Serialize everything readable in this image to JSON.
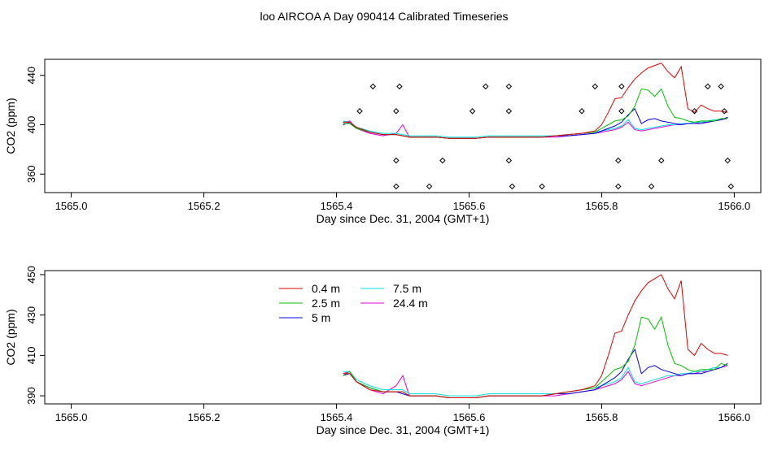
{
  "title": "loo AIRCOA A  Day 090414  Calibrated Timeseries",
  "colors": {
    "0.4 m": "#e00000",
    "2.5 m": "#00c000",
    "5 m": "#0000dd",
    "7.5 m": "#00e0e0",
    "24.4 m": "#e000e0",
    "points": "#000000"
  },
  "chart_data": [
    {
      "type": "line",
      "xlabel": "Day since Dec. 31, 2004 (GMT+1)",
      "ylabel": "CO2 (ppm)",
      "xlim": [
        1564.96,
        1566.04
      ],
      "ylim": [
        345,
        453
      ],
      "xticks": [
        1565.0,
        1565.2,
        1565.4,
        1565.6,
        1565.8,
        1566.0
      ],
      "xtick_labels": [
        "1565.0",
        "1565.2",
        "1565.4",
        "1565.6",
        "1565.8",
        "1566.0"
      ],
      "yticks": [
        360,
        400,
        440
      ],
      "ytick_labels": [
        "360",
        "400",
        "440"
      ],
      "legend": null,
      "x": [
        1565.41,
        1565.42,
        1565.43,
        1565.45,
        1565.47,
        1565.49,
        1565.5,
        1565.51,
        1565.53,
        1565.55,
        1565.57,
        1565.59,
        1565.61,
        1565.63,
        1565.65,
        1565.67,
        1565.69,
        1565.71,
        1565.73,
        1565.75,
        1565.77,
        1565.79,
        1565.8,
        1565.81,
        1565.82,
        1565.83,
        1565.84,
        1565.85,
        1565.86,
        1565.87,
        1565.88,
        1565.89,
        1565.9,
        1565.91,
        1565.92,
        1565.93,
        1565.94,
        1565.95,
        1565.96,
        1565.97,
        1565.98,
        1565.99
      ],
      "series": [
        {
          "name": "0.4 m",
          "values": [
            402,
            402,
            398,
            394,
            392,
            392,
            391,
            390,
            390,
            390,
            389,
            389,
            389,
            390,
            390,
            390,
            390,
            390,
            391,
            392,
            393,
            395,
            400,
            410,
            421,
            422,
            430,
            437,
            442,
            446,
            448,
            450,
            443,
            438,
            447,
            413,
            410,
            416,
            413,
            411,
            411,
            410
          ]
        },
        {
          "name": "2.5 m",
          "values": [
            401,
            401,
            397,
            394,
            392,
            392,
            391,
            390,
            390,
            390,
            389,
            389,
            389,
            390,
            390,
            390,
            390,
            390,
            391,
            392,
            393,
            394,
            397,
            400,
            403,
            404,
            407,
            415,
            429,
            428,
            423,
            429,
            415,
            406,
            405,
            403,
            402,
            403,
            403,
            403,
            405,
            405
          ]
        },
        {
          "name": "5 m",
          "values": [
            400,
            402,
            397,
            394,
            392,
            392,
            391,
            390,
            390,
            390,
            389,
            389,
            389,
            390,
            390,
            390,
            390,
            390,
            391,
            391,
            392,
            393,
            395,
            397,
            399,
            402,
            408,
            413,
            401,
            404,
            405,
            403,
            402,
            401,
            400,
            401,
            401,
            401,
            402,
            403,
            404,
            406
          ]
        },
        {
          "name": "7.5 m",
          "values": [
            403,
            402,
            398,
            395,
            393,
            393,
            392,
            391,
            391,
            391,
            390,
            390,
            390,
            391,
            391,
            391,
            391,
            391,
            391,
            392,
            393,
            394,
            395,
            396,
            397,
            399,
            404,
            397,
            396,
            397,
            398,
            399,
            400,
            400,
            401,
            401,
            402,
            402,
            403,
            404,
            404,
            406
          ]
        },
        {
          "name": "24.4 m",
          "values": [
            402,
            403,
            397,
            393,
            391,
            393,
            400,
            390,
            390,
            390,
            389,
            389,
            389,
            390,
            390,
            390,
            390,
            390,
            390,
            391,
            392,
            393,
            394,
            395,
            396,
            398,
            402,
            396,
            395,
            396,
            397,
            398,
            399,
            400,
            400,
            401,
            401,
            402,
            402,
            403,
            404,
            405
          ]
        }
      ],
      "points": [
        {
          "x": 1565.455,
          "y": 431
        },
        {
          "x": 1565.495,
          "y": 431
        },
        {
          "x": 1565.625,
          "y": 431
        },
        {
          "x": 1565.66,
          "y": 431
        },
        {
          "x": 1565.79,
          "y": 431
        },
        {
          "x": 1565.83,
          "y": 431
        },
        {
          "x": 1565.96,
          "y": 431
        },
        {
          "x": 1565.98,
          "y": 431
        },
        {
          "x": 1565.435,
          "y": 411
        },
        {
          "x": 1565.49,
          "y": 411
        },
        {
          "x": 1565.605,
          "y": 411
        },
        {
          "x": 1565.66,
          "y": 411
        },
        {
          "x": 1565.77,
          "y": 411
        },
        {
          "x": 1565.83,
          "y": 411
        },
        {
          "x": 1565.94,
          "y": 411
        },
        {
          "x": 1565.985,
          "y": 411
        },
        {
          "x": 1565.49,
          "y": 371
        },
        {
          "x": 1565.56,
          "y": 371
        },
        {
          "x": 1565.66,
          "y": 371
        },
        {
          "x": 1565.825,
          "y": 371
        },
        {
          "x": 1565.89,
          "y": 371
        },
        {
          "x": 1565.99,
          "y": 371
        },
        {
          "x": 1565.49,
          "y": 350
        },
        {
          "x": 1565.54,
          "y": 350
        },
        {
          "x": 1565.665,
          "y": 350
        },
        {
          "x": 1565.71,
          "y": 350
        },
        {
          "x": 1565.825,
          "y": 350
        },
        {
          "x": 1565.875,
          "y": 350
        },
        {
          "x": 1565.995,
          "y": 350
        }
      ]
    },
    {
      "type": "line",
      "xlabel": "Day since Dec. 31, 2004 (GMT+1)",
      "ylabel": "CO2 (ppm)",
      "xlim": [
        1564.96,
        1566.04
      ],
      "ylim": [
        386,
        452
      ],
      "xticks": [
        1565.0,
        1565.2,
        1565.4,
        1565.6,
        1565.8,
        1566.0
      ],
      "xtick_labels": [
        "1565.0",
        "1565.2",
        "1565.4",
        "1565.6",
        "1565.8",
        "1566.0"
      ],
      "yticks": [
        390,
        410,
        430,
        450
      ],
      "ytick_labels": [
        "390",
        "410",
        "430",
        "450"
      ],
      "legend": {
        "placement": "top-left",
        "entries": [
          "0.4 m",
          "2.5 m",
          "5 m",
          "7.5 m",
          "24.4 m"
        ]
      },
      "x": [
        1565.41,
        1565.42,
        1565.43,
        1565.45,
        1565.47,
        1565.49,
        1565.5,
        1565.51,
        1565.53,
        1565.55,
        1565.57,
        1565.59,
        1565.61,
        1565.63,
        1565.65,
        1565.67,
        1565.69,
        1565.71,
        1565.73,
        1565.75,
        1565.77,
        1565.79,
        1565.8,
        1565.81,
        1565.82,
        1565.83,
        1565.84,
        1565.85,
        1565.86,
        1565.87,
        1565.88,
        1565.89,
        1565.9,
        1565.91,
        1565.92,
        1565.93,
        1565.94,
        1565.95,
        1565.96,
        1565.97,
        1565.98,
        1565.99
      ],
      "series": [
        {
          "name": "0.4 m",
          "values": [
            401,
            401,
            397,
            393,
            392,
            392,
            392,
            390,
            390,
            390,
            389,
            389,
            389,
            390,
            390,
            390,
            390,
            390,
            391,
            392,
            393,
            395,
            400,
            410,
            421,
            422,
            430,
            437,
            442,
            446,
            448,
            450,
            443,
            438,
            447,
            413,
            410,
            416,
            413,
            411,
            411,
            410
          ]
        },
        {
          "name": "2.5 m",
          "values": [
            400,
            402,
            397,
            394,
            392,
            392,
            392,
            390,
            390,
            390,
            389,
            389,
            389,
            390,
            390,
            390,
            390,
            390,
            391,
            392,
            393,
            394,
            397,
            400,
            403,
            404,
            407,
            415,
            429,
            428,
            423,
            429,
            415,
            406,
            405,
            403,
            402,
            403,
            403,
            403,
            406,
            405
          ]
        },
        {
          "name": "5 m",
          "values": [
            400,
            401,
            397,
            394,
            392,
            392,
            391,
            390,
            390,
            390,
            389,
            389,
            389,
            390,
            390,
            390,
            390,
            390,
            391,
            391,
            392,
            393,
            395,
            397,
            399,
            402,
            408,
            413,
            401,
            404,
            405,
            403,
            402,
            401,
            400,
            401,
            401,
            401,
            402,
            403,
            404,
            406
          ]
        },
        {
          "name": "7.5 m",
          "values": [
            402,
            402,
            398,
            395,
            393,
            393,
            393,
            391,
            391,
            391,
            390,
            390,
            390,
            391,
            391,
            391,
            391,
            391,
            391,
            392,
            393,
            394,
            395,
            396,
            397,
            399,
            404,
            397,
            396,
            397,
            398,
            399,
            400,
            400,
            401,
            401,
            402,
            402,
            403,
            404,
            404,
            406
          ]
        },
        {
          "name": "24.4 m",
          "values": [
            401,
            402,
            397,
            393,
            391,
            395,
            400,
            390,
            390,
            390,
            389,
            389,
            389,
            390,
            390,
            390,
            390,
            390,
            390,
            391,
            392,
            393,
            394,
            395,
            396,
            398,
            402,
            396,
            395,
            396,
            397,
            398,
            399,
            400,
            400,
            401,
            401,
            402,
            402,
            403,
            404,
            405
          ]
        }
      ]
    }
  ]
}
